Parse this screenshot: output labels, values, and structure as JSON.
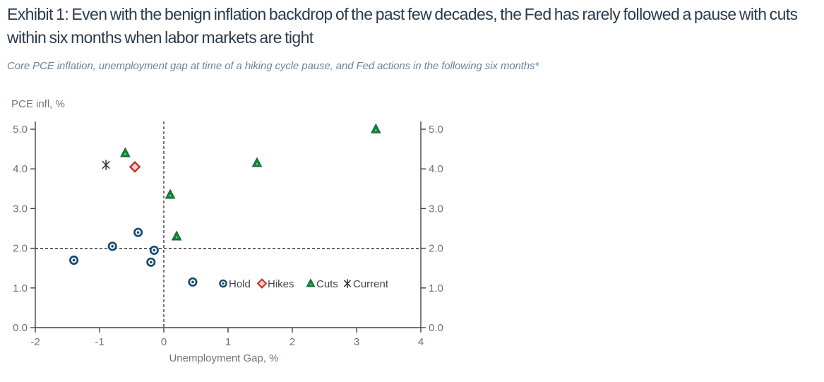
{
  "header": {
    "title": "Exhibit 1: Even with the benign inflation backdrop of the past few decades, the Fed has rarely followed a pause with cuts within six months when labor markets are tight",
    "subtitle": "Core PCE inflation, unemployment gap at time of a hiking cycle pause, and Fed actions in the following six months*"
  },
  "colors": {
    "title_text": "#2b3b4d",
    "subtitle_text": "#6f83a0",
    "tick_label": "#68727e",
    "axis_title": "#6d7680",
    "axis_line": "#444444",
    "dashed_line": "#1a1a1a",
    "legend_text": "#3d4650",
    "hold_navy": "#164a72",
    "hikes_red": "#c23430",
    "hikes_fill": "#f5d3cf",
    "cuts_green": "#15873e",
    "current_black": "#333333"
  },
  "chart_data": {
    "type": "scatter",
    "title": "",
    "xlabel": "Unemployment Gap, %",
    "ylabel": "PCE infl, %",
    "xlim": [
      -2,
      4
    ],
    "ylim": [
      0,
      5
    ],
    "x_ticks": [
      "-2",
      "-1",
      "0",
      "1",
      "2",
      "3",
      "4"
    ],
    "y_ticks": [
      "0.0",
      "1.0",
      "2.0",
      "3.0",
      "4.0",
      "5.0"
    ],
    "y_axis_mirrored_right": true,
    "grid": false,
    "legend_position": "inside-plot-right-of-last-hold-point",
    "reference_lines": [
      {
        "orientation": "vertical",
        "value": 0,
        "style": "dashed"
      },
      {
        "orientation": "horizontal",
        "value": 2.0,
        "style": "dashed"
      }
    ],
    "series": [
      {
        "name": "Hold",
        "marker": "circle",
        "color": "#164a72",
        "points": [
          [
            -1.4,
            1.7
          ],
          [
            -0.8,
            2.05
          ],
          [
            -0.4,
            2.4
          ],
          [
            -0.2,
            1.65
          ],
          [
            -0.15,
            1.95
          ],
          [
            0.45,
            1.15
          ]
        ]
      },
      {
        "name": "Hikes",
        "marker": "diamond",
        "color": "#c23430",
        "points": [
          [
            -0.45,
            4.05
          ]
        ]
      },
      {
        "name": "Cuts",
        "marker": "triangle",
        "color": "#15873e",
        "points": [
          [
            -0.6,
            4.4
          ],
          [
            0.1,
            3.35
          ],
          [
            0.2,
            2.3
          ],
          [
            1.45,
            4.15
          ],
          [
            3.3,
            5.0
          ]
        ]
      },
      {
        "name": "Current",
        "marker": "asterisk",
        "color": "#333333",
        "points": [
          [
            -0.9,
            4.1
          ]
        ]
      }
    ]
  }
}
